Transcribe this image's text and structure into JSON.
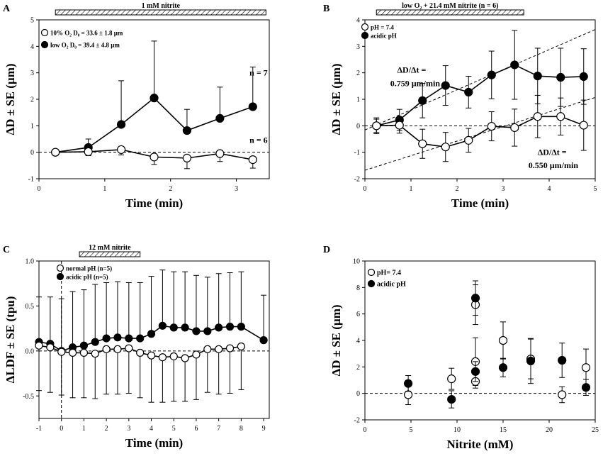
{
  "chart_data": [
    {
      "panel": "A",
      "type": "line",
      "xlabel": "Time (min)",
      "ylabel": "ΔD ± SE (µm)",
      "xlim": [
        0,
        3.5
      ],
      "ylim": [
        -1,
        5
      ],
      "xticks": [
        0,
        1,
        2,
        3
      ],
      "yticks": [
        -1,
        0,
        1,
        2,
        3,
        4,
        5
      ],
      "stimulus_label": "1 mM nitrite",
      "stimulus_range": [
        0.25,
        3.45
      ],
      "legend": [
        {
          "marker": "open",
          "text": "10% O₂ D₀ = 33.6 ± 1.8 µm"
        },
        {
          "marker": "filled",
          "text": "low O₂   D₀ = 39.4 ± 4.8 µm"
        }
      ],
      "annotations": [
        {
          "text": "n = 7",
          "x": 3.2,
          "y": 2.9
        },
        {
          "text": "n = 6",
          "x": 3.2,
          "y": 0.35
        }
      ],
      "series": [
        {
          "name": "low O₂",
          "marker": "filled",
          "x": [
            0.25,
            0.75,
            1.25,
            1.75,
            2.25,
            2.75,
            3.25
          ],
          "y": [
            0,
            0.18,
            1.05,
            2.05,
            0.82,
            1.28,
            1.72
          ],
          "err_up": [
            0,
            0.32,
            1.65,
            2.15,
            0.8,
            1.18,
            1.5
          ],
          "err_down": [
            0,
            0,
            0,
            0,
            0,
            0,
            0
          ]
        },
        {
          "name": "10% O₂",
          "marker": "open",
          "x": [
            0.25,
            0.75,
            1.25,
            1.75,
            2.25,
            2.75,
            3.25
          ],
          "y": [
            0,
            0.02,
            0.1,
            -0.18,
            -0.22,
            -0.05,
            -0.28
          ],
          "err_up": [
            0,
            0,
            0,
            0,
            0,
            0,
            0
          ],
          "err_down": [
            0,
            0.15,
            0.2,
            0.28,
            0.4,
            0.3,
            0.32
          ]
        }
      ]
    },
    {
      "panel": "B",
      "type": "line",
      "xlabel": "Time (min)",
      "ylabel": "ΔD ± SE (µm)",
      "xlim": [
        0,
        5
      ],
      "ylim": [
        -2,
        4
      ],
      "xticks": [
        0,
        1,
        2,
        3,
        4,
        5
      ],
      "yticks": [
        -2,
        -1,
        0,
        1,
        2,
        3,
        4
      ],
      "stimulus_label": "low O₂ + 21.4 mM nitrite (n = 6)",
      "stimulus_range": [
        0.25,
        3.45
      ],
      "legend": [
        {
          "marker": "open",
          "text": "pH = 7.4"
        },
        {
          "marker": "filled",
          "text": "acidic pH"
        }
      ],
      "annotations": [
        {
          "text": "ΔD/Δt =",
          "x": 0.7,
          "y": 2.0
        },
        {
          "text": "0.759 µm/min",
          "x": 0.55,
          "y": 1.5
        },
        {
          "text": "ΔD/Δt =",
          "x": 3.75,
          "y": -1.1
        },
        {
          "text": "0.550 µm/min",
          "x": 3.55,
          "y": -1.6
        }
      ],
      "fit_lines": [
        {
          "slope": 0.759,
          "intercept": -0.16
        },
        {
          "slope": 0.55,
          "intercept": -1.68
        }
      ],
      "series": [
        {
          "name": "acidic pH",
          "marker": "filled",
          "x": [
            0.25,
            0.75,
            1.25,
            1.75,
            2.25,
            2.75,
            3.25,
            3.75,
            4.25,
            4.75
          ],
          "y": [
            0,
            0.22,
            0.95,
            1.52,
            1.27,
            1.92,
            2.3,
            1.88,
            1.83,
            1.86
          ],
          "err_up": [
            0.3,
            0.4,
            0.65,
            0.75,
            0.6,
            0.9,
            1.3,
            1.05,
            1.1,
            1.05
          ],
          "err_down": [
            0.3,
            0.4,
            0.65,
            0.75,
            0.6,
            0.9,
            1.3,
            1.05,
            1.1,
            1.05
          ]
        },
        {
          "name": "pH = 7.4",
          "marker": "open",
          "x": [
            0.25,
            0.75,
            1.25,
            1.75,
            2.25,
            2.75,
            3.25,
            3.75,
            4.25,
            4.75
          ],
          "y": [
            0,
            0.02,
            -0.68,
            -0.8,
            -0.55,
            -0.02,
            -0.07,
            0.35,
            0.35,
            0.02
          ],
          "err_up": [
            0.25,
            0.3,
            0.55,
            0.55,
            0.45,
            0.55,
            0.7,
            0.8,
            0.7,
            0.95
          ],
          "err_down": [
            0.25,
            0.3,
            0.55,
            0.55,
            0.45,
            0.55,
            0.7,
            0.8,
            0.7,
            0.95
          ]
        }
      ]
    },
    {
      "panel": "C",
      "type": "line",
      "xlabel": "Time (min)",
      "ylabel": "ΔLDF ± SE (tpu)",
      "xlim": [
        -1,
        9.25
      ],
      "ylim": [
        -0.75,
        1.0
      ],
      "xticks": [
        -1,
        0,
        1,
        2,
        3,
        4,
        5,
        6,
        7,
        8,
        9
      ],
      "yticks": [
        -0.5,
        0.0,
        0.5,
        1.0
      ],
      "ytick_labels": [
        "-0.5",
        "0.0",
        "0.5",
        "1.0"
      ],
      "stimulus_label": "12 mM nitrite",
      "stimulus_range": [
        0.8,
        3.5
      ],
      "vline_x": 0,
      "legend": [
        {
          "marker": "open",
          "text": "normal pH (n=5)"
        },
        {
          "marker": "filled",
          "text": "acidic pH (n=5)"
        }
      ],
      "series": [
        {
          "name": "acidic pH (n=5)",
          "marker": "filled",
          "x": [
            -1,
            -0.5,
            0,
            0.5,
            1,
            1.5,
            2,
            2.5,
            3,
            3.5,
            4,
            4.5,
            5,
            5.5,
            6,
            6.5,
            7,
            7.5,
            8,
            9
          ],
          "y": [
            0.1,
            0.08,
            0.0,
            0.04,
            0.06,
            0.1,
            0.14,
            0.15,
            0.14,
            0.14,
            0.19,
            0.28,
            0.26,
            0.26,
            0.22,
            0.22,
            0.26,
            0.27,
            0.27,
            0.12
          ],
          "err_up": [
            0.5,
            0.52,
            0.58,
            0.62,
            0.62,
            0.64,
            0.62,
            0.62,
            0.62,
            0.62,
            0.64,
            0.62,
            0.62,
            0.62,
            0.62,
            0.6,
            0.6,
            0.6,
            0.61,
            0.5
          ],
          "err_down": [
            0,
            0,
            0,
            0,
            0,
            0,
            0,
            0,
            0,
            0,
            0,
            0,
            0,
            0,
            0,
            0,
            0,
            0,
            0,
            0
          ]
        },
        {
          "name": "normal pH (n=5)",
          "marker": "open",
          "x": [
            -1,
            -0.5,
            0,
            0.5,
            1,
            1.5,
            2,
            2.5,
            3,
            3.5,
            4,
            4.5,
            5,
            5.5,
            6,
            6.5,
            7,
            7.5,
            8
          ],
          "y": [
            0.06,
            0.04,
            -0.01,
            -0.02,
            -0.02,
            -0.03,
            0.02,
            0.02,
            0.03,
            -0.02,
            -0.05,
            -0.07,
            -0.06,
            -0.08,
            -0.04,
            0.02,
            0.02,
            0.03,
            0.05
          ],
          "err_up": [
            0,
            0,
            0,
            0,
            0,
            0,
            0,
            0,
            0,
            0,
            0,
            0,
            0,
            0,
            0,
            0,
            0,
            0,
            0
          ],
          "err_down": [
            0.5,
            0.5,
            0.48,
            0.5,
            0.5,
            0.5,
            0.5,
            0.5,
            0.5,
            0.5,
            0.52,
            0.5,
            0.5,
            0.48,
            0.5,
            0.48,
            0.5,
            0.5,
            0.48
          ]
        }
      ]
    },
    {
      "panel": "D",
      "type": "scatter",
      "xlabel": "Nitrite (mM)",
      "ylabel": "ΔD ± SE (µm)",
      "xlim": [
        0,
        25
      ],
      "ylim": [
        -2,
        10
      ],
      "xticks": [
        0,
        5,
        10,
        15,
        20,
        25
      ],
      "yticks": [
        -2,
        0,
        2,
        4,
        6,
        8,
        10
      ],
      "legend": [
        {
          "marker": "open",
          "text": "pH= 7.4"
        },
        {
          "marker": "filled",
          "text": "acidic pH"
        }
      ],
      "series": [
        {
          "name": "pH= 7.4",
          "marker": "open",
          "x": [
            4.7,
            9.4,
            12,
            12,
            12,
            15,
            18,
            21.4,
            24
          ],
          "y": [
            -0.1,
            1.1,
            6.7,
            2.4,
            0.9,
            4.0,
            2.6,
            -0.1,
            1.95
          ],
          "err": [
            0.75,
            0.8,
            1.5,
            1.8,
            0.5,
            1.4,
            1.5,
            0.6,
            1.4
          ]
        },
        {
          "name": "acidic pH",
          "marker": "filled",
          "x": [
            4.7,
            9.4,
            12,
            12,
            15,
            18,
            21.4,
            24
          ],
          "y": [
            0.75,
            -0.45,
            7.2,
            1.65,
            1.95,
            2.45,
            2.5,
            0.45
          ],
          "err": [
            0.6,
            0.65,
            1.3,
            0.75,
            0.7,
            1.7,
            1.3,
            0.6
          ]
        }
      ]
    }
  ],
  "panel_labels": [
    "A",
    "B",
    "C",
    "D"
  ]
}
